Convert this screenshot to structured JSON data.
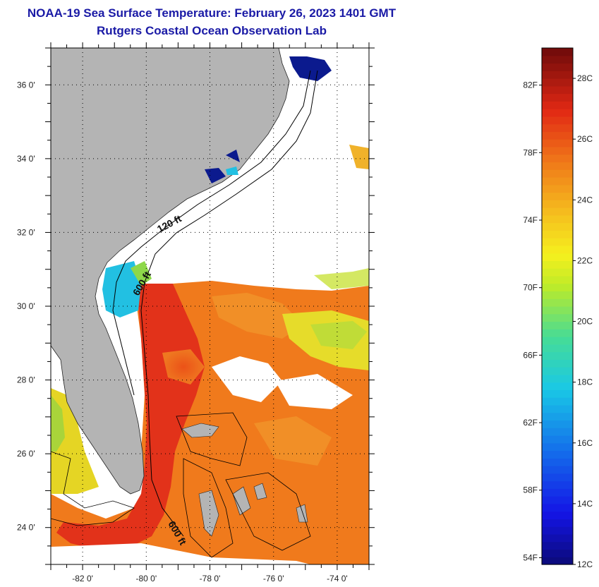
{
  "header": {
    "title": "NOAA-19 Sea Surface Temperature:  February 26, 2023 1401 GMT",
    "subtitle": "Rutgers Coastal Ocean Observation Lab"
  },
  "map": {
    "lon_range": [
      -83,
      -73
    ],
    "lat_range": [
      23,
      37
    ],
    "lat_ticks": [
      {
        "value": 24,
        "label": "24 0'"
      },
      {
        "value": 26,
        "label": "26 0'"
      },
      {
        "value": 28,
        "label": "28 0'"
      },
      {
        "value": 30,
        "label": "30 0'"
      },
      {
        "value": 32,
        "label": "32 0'"
      },
      {
        "value": 34,
        "label": "34 0'"
      },
      {
        "value": 36,
        "label": "36 0'"
      }
    ],
    "lon_ticks": [
      {
        "value": -82,
        "label": "-82 0'"
      },
      {
        "value": -80,
        "label": "-80 0'"
      },
      {
        "value": -78,
        "label": "-78 0'"
      },
      {
        "value": -76,
        "label": "-76 0'"
      },
      {
        "value": -74,
        "label": "-74 0'"
      }
    ],
    "depth_labels": {
      "label_120": "120 ft",
      "label_600_north": "600 ft",
      "label_600_south": "600 ft"
    },
    "colors": {
      "land": "#b4b4b4",
      "cloud": "#ffffff",
      "warm": "#e23a16",
      "orange": "#f07a1c",
      "yellow": "#f2e21e",
      "cyan": "#19c6e8",
      "navy": "#0b1a8e"
    }
  },
  "colorbar": {
    "fahrenheit_labels": [
      {
        "value": 54,
        "label": "54F"
      },
      {
        "value": 58,
        "label": "58F"
      },
      {
        "value": 62,
        "label": "62F"
      },
      {
        "value": 66,
        "label": "66F"
      },
      {
        "value": 70,
        "label": "70F"
      },
      {
        "value": 74,
        "label": "74F"
      },
      {
        "value": 78,
        "label": "78F"
      },
      {
        "value": 82,
        "label": "82F"
      }
    ],
    "celsius_labels": [
      {
        "value": 12,
        "label": "12C"
      },
      {
        "value": 14,
        "label": "14C"
      },
      {
        "value": 16,
        "label": "16C"
      },
      {
        "value": 18,
        "label": "18C"
      },
      {
        "value": 20,
        "label": "20C"
      },
      {
        "value": 22,
        "label": "22C"
      },
      {
        "value": 24,
        "label": "24C"
      },
      {
        "value": 26,
        "label": "26C"
      },
      {
        "value": 28,
        "label": "28C"
      }
    ],
    "range_c": [
      12,
      29
    ]
  }
}
